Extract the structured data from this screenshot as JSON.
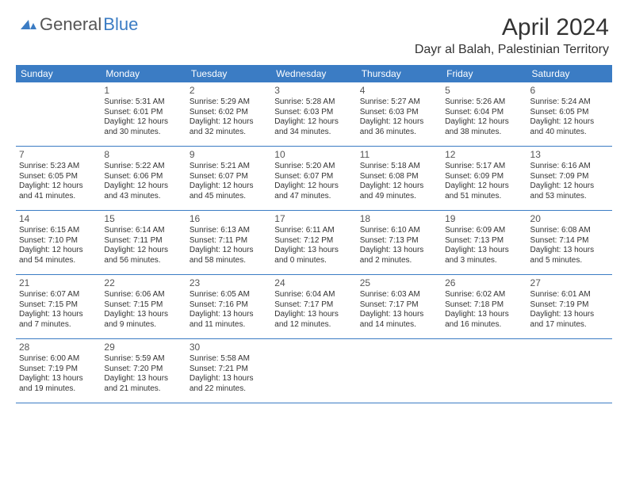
{
  "logo": {
    "text1": "General",
    "text2": "Blue"
  },
  "title": "April 2024",
  "location": "Dayr al Balah, Palestinian Territory",
  "dayNames": [
    "Sunday",
    "Monday",
    "Tuesday",
    "Wednesday",
    "Thursday",
    "Friday",
    "Saturday"
  ],
  "colors": {
    "headerBg": "#3b7cc4",
    "headerText": "#ffffff",
    "bodyText": "#333333",
    "logoBlue": "#3b7cc4"
  },
  "weeks": [
    [
      {
        "n": "",
        "lines": []
      },
      {
        "n": "1",
        "lines": [
          "Sunrise: 5:31 AM",
          "Sunset: 6:01 PM",
          "Daylight: 12 hours and 30 minutes."
        ]
      },
      {
        "n": "2",
        "lines": [
          "Sunrise: 5:29 AM",
          "Sunset: 6:02 PM",
          "Daylight: 12 hours and 32 minutes."
        ]
      },
      {
        "n": "3",
        "lines": [
          "Sunrise: 5:28 AM",
          "Sunset: 6:03 PM",
          "Daylight: 12 hours and 34 minutes."
        ]
      },
      {
        "n": "4",
        "lines": [
          "Sunrise: 5:27 AM",
          "Sunset: 6:03 PM",
          "Daylight: 12 hours and 36 minutes."
        ]
      },
      {
        "n": "5",
        "lines": [
          "Sunrise: 5:26 AM",
          "Sunset: 6:04 PM",
          "Daylight: 12 hours and 38 minutes."
        ]
      },
      {
        "n": "6",
        "lines": [
          "Sunrise: 5:24 AM",
          "Sunset: 6:05 PM",
          "Daylight: 12 hours and 40 minutes."
        ]
      }
    ],
    [
      {
        "n": "7",
        "lines": [
          "Sunrise: 5:23 AM",
          "Sunset: 6:05 PM",
          "Daylight: 12 hours and 41 minutes."
        ]
      },
      {
        "n": "8",
        "lines": [
          "Sunrise: 5:22 AM",
          "Sunset: 6:06 PM",
          "Daylight: 12 hours and 43 minutes."
        ]
      },
      {
        "n": "9",
        "lines": [
          "Sunrise: 5:21 AM",
          "Sunset: 6:07 PM",
          "Daylight: 12 hours and 45 minutes."
        ]
      },
      {
        "n": "10",
        "lines": [
          "Sunrise: 5:20 AM",
          "Sunset: 6:07 PM",
          "Daylight: 12 hours and 47 minutes."
        ]
      },
      {
        "n": "11",
        "lines": [
          "Sunrise: 5:18 AM",
          "Sunset: 6:08 PM",
          "Daylight: 12 hours and 49 minutes."
        ]
      },
      {
        "n": "12",
        "lines": [
          "Sunrise: 5:17 AM",
          "Sunset: 6:09 PM",
          "Daylight: 12 hours and 51 minutes."
        ]
      },
      {
        "n": "13",
        "lines": [
          "Sunrise: 6:16 AM",
          "Sunset: 7:09 PM",
          "Daylight: 12 hours and 53 minutes."
        ]
      }
    ],
    [
      {
        "n": "14",
        "lines": [
          "Sunrise: 6:15 AM",
          "Sunset: 7:10 PM",
          "Daylight: 12 hours and 54 minutes."
        ]
      },
      {
        "n": "15",
        "lines": [
          "Sunrise: 6:14 AM",
          "Sunset: 7:11 PM",
          "Daylight: 12 hours and 56 minutes."
        ]
      },
      {
        "n": "16",
        "lines": [
          "Sunrise: 6:13 AM",
          "Sunset: 7:11 PM",
          "Daylight: 12 hours and 58 minutes."
        ]
      },
      {
        "n": "17",
        "lines": [
          "Sunrise: 6:11 AM",
          "Sunset: 7:12 PM",
          "Daylight: 13 hours and 0 minutes."
        ]
      },
      {
        "n": "18",
        "lines": [
          "Sunrise: 6:10 AM",
          "Sunset: 7:13 PM",
          "Daylight: 13 hours and 2 minutes."
        ]
      },
      {
        "n": "19",
        "lines": [
          "Sunrise: 6:09 AM",
          "Sunset: 7:13 PM",
          "Daylight: 13 hours and 3 minutes."
        ]
      },
      {
        "n": "20",
        "lines": [
          "Sunrise: 6:08 AM",
          "Sunset: 7:14 PM",
          "Daylight: 13 hours and 5 minutes."
        ]
      }
    ],
    [
      {
        "n": "21",
        "lines": [
          "Sunrise: 6:07 AM",
          "Sunset: 7:15 PM",
          "Daylight: 13 hours and 7 minutes."
        ]
      },
      {
        "n": "22",
        "lines": [
          "Sunrise: 6:06 AM",
          "Sunset: 7:15 PM",
          "Daylight: 13 hours and 9 minutes."
        ]
      },
      {
        "n": "23",
        "lines": [
          "Sunrise: 6:05 AM",
          "Sunset: 7:16 PM",
          "Daylight: 13 hours and 11 minutes."
        ]
      },
      {
        "n": "24",
        "lines": [
          "Sunrise: 6:04 AM",
          "Sunset: 7:17 PM",
          "Daylight: 13 hours and 12 minutes."
        ]
      },
      {
        "n": "25",
        "lines": [
          "Sunrise: 6:03 AM",
          "Sunset: 7:17 PM",
          "Daylight: 13 hours and 14 minutes."
        ]
      },
      {
        "n": "26",
        "lines": [
          "Sunrise: 6:02 AM",
          "Sunset: 7:18 PM",
          "Daylight: 13 hours and 16 minutes."
        ]
      },
      {
        "n": "27",
        "lines": [
          "Sunrise: 6:01 AM",
          "Sunset: 7:19 PM",
          "Daylight: 13 hours and 17 minutes."
        ]
      }
    ],
    [
      {
        "n": "28",
        "lines": [
          "Sunrise: 6:00 AM",
          "Sunset: 7:19 PM",
          "Daylight: 13 hours and 19 minutes."
        ]
      },
      {
        "n": "29",
        "lines": [
          "Sunrise: 5:59 AM",
          "Sunset: 7:20 PM",
          "Daylight: 13 hours and 21 minutes."
        ]
      },
      {
        "n": "30",
        "lines": [
          "Sunrise: 5:58 AM",
          "Sunset: 7:21 PM",
          "Daylight: 13 hours and 22 minutes."
        ]
      },
      {
        "n": "",
        "lines": []
      },
      {
        "n": "",
        "lines": []
      },
      {
        "n": "",
        "lines": []
      },
      {
        "n": "",
        "lines": []
      }
    ]
  ]
}
